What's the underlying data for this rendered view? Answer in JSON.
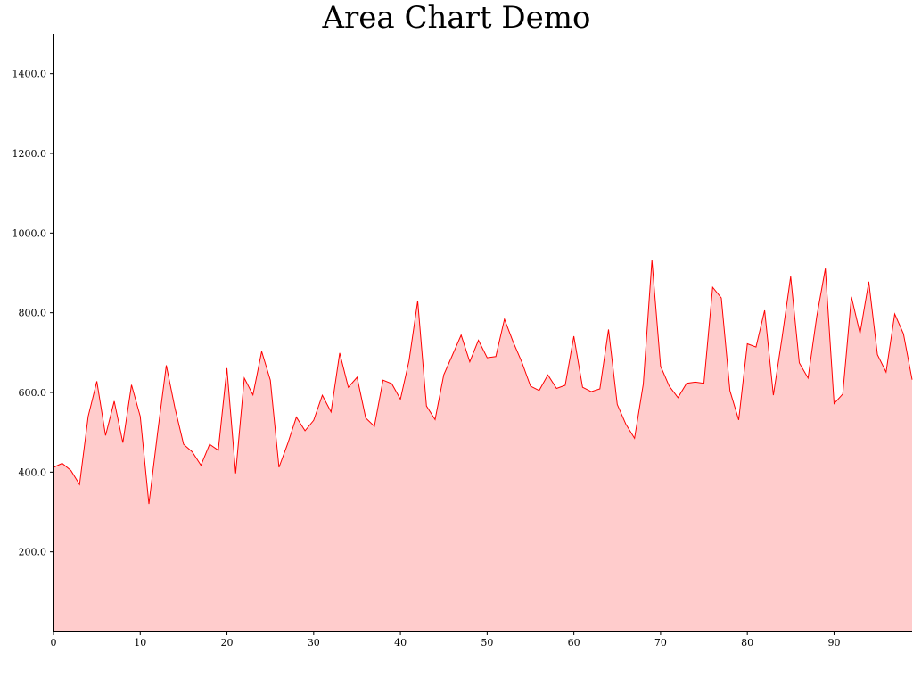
{
  "chart_data": {
    "type": "area",
    "title": "Area Chart Demo",
    "xlabel": "",
    "ylabel": "",
    "xlim": [
      0,
      99
    ],
    "ylim": [
      0,
      1500
    ],
    "x_ticks": [
      0,
      10,
      20,
      30,
      40,
      50,
      60,
      70,
      80,
      90
    ],
    "x_tick_labels": [
      "0",
      "10",
      "20",
      "30",
      "40",
      "50",
      "60",
      "70",
      "80",
      "90"
    ],
    "y_ticks": [
      200,
      400,
      600,
      800,
      1000,
      1200,
      1400
    ],
    "y_tick_labels": [
      "200.0",
      "400.0",
      "600.0",
      "800.0",
      "1000.0",
      "1200.0",
      "1400.0"
    ],
    "grid": false,
    "legend": "none",
    "colors": {
      "line": "#ff0000",
      "fill": "#ffcccc"
    },
    "series": [
      {
        "x": [
          0,
          1,
          2,
          3,
          4,
          5,
          6,
          7,
          8,
          9,
          10,
          11,
          12,
          13,
          14,
          15,
          16,
          17,
          18,
          19,
          20,
          21,
          22,
          23,
          24,
          25,
          26,
          27,
          28,
          29,
          30,
          31,
          32,
          33,
          34,
          35,
          36,
          37,
          38,
          39,
          40,
          41,
          42,
          43,
          44,
          45,
          46,
          47,
          48,
          49,
          50,
          51,
          52,
          53,
          54,
          55,
          56,
          57,
          58,
          59,
          60,
          61,
          62,
          63,
          64,
          65,
          66,
          67,
          68,
          69,
          70,
          71,
          72,
          73,
          74,
          75,
          76,
          77,
          78,
          79,
          80,
          81,
          82,
          83,
          84,
          85,
          86,
          87,
          88,
          89,
          90,
          91,
          92,
          93,
          94,
          95,
          96,
          97,
          98,
          99
        ],
        "values": [
          412,
          422,
          404,
          369,
          540,
          628,
          492,
          578,
          474,
          619,
          540,
          320,
          498,
          668,
          561,
          470,
          451,
          417,
          470,
          455,
          661,
          397,
          636,
          594,
          703,
          631,
          412,
          471,
          538,
          504,
          530,
          593,
          551,
          699,
          613,
          638,
          536,
          515,
          631,
          622,
          583,
          680,
          830,
          566,
          532,
          644,
          694,
          744,
          677,
          731,
          687,
          690,
          784,
          727,
          676,
          616,
          605,
          644,
          610,
          618,
          741,
          613,
          602,
          609,
          758,
          570,
          520,
          485,
          621,
          932,
          666,
          616,
          587,
          623,
          626,
          623,
          864,
          837,
          604,
          531,
          722,
          714,
          806,
          593,
          737,
          891,
          674,
          636,
          790,
          911,
          572,
          596,
          840,
          748,
          878,
          695,
          651,
          797,
          747,
          632
        ]
      }
    ]
  }
}
